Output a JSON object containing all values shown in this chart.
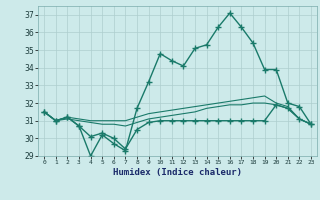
{
  "xlabel": "Humidex (Indice chaleur)",
  "bg_color": "#cdeaea",
  "grid_color": "#aecece",
  "line_color": "#1a7a6a",
  "xlim": [
    -0.5,
    23.5
  ],
  "ylim": [
    29,
    37.5
  ],
  "xticks": [
    0,
    1,
    2,
    3,
    4,
    5,
    6,
    7,
    8,
    9,
    10,
    11,
    12,
    13,
    14,
    15,
    16,
    17,
    18,
    19,
    20,
    21,
    22,
    23
  ],
  "yticks": [
    29,
    30,
    31,
    32,
    33,
    34,
    35,
    36,
    37
  ],
  "series": [
    [
      31.5,
      31.0,
      31.2,
      30.7,
      29.0,
      30.2,
      29.7,
      29.3,
      31.7,
      33.2,
      34.8,
      34.4,
      34.1,
      35.1,
      35.3,
      36.3,
      37.1,
      36.3,
      35.4,
      33.9,
      33.9,
      32.0,
      31.8,
      30.8
    ],
    [
      31.5,
      31.0,
      31.2,
      31.1,
      31.0,
      31.0,
      31.0,
      31.0,
      31.2,
      31.4,
      31.5,
      31.6,
      31.7,
      31.8,
      31.9,
      32.0,
      32.1,
      32.2,
      32.3,
      32.4,
      32.0,
      31.8,
      31.1,
      30.8
    ],
    [
      31.5,
      31.0,
      31.1,
      31.0,
      30.9,
      30.8,
      30.8,
      30.7,
      30.9,
      31.1,
      31.2,
      31.3,
      31.4,
      31.5,
      31.7,
      31.8,
      31.9,
      31.9,
      32.0,
      32.0,
      31.9,
      31.7,
      31.1,
      30.8
    ],
    [
      31.5,
      31.0,
      31.2,
      30.7,
      30.1,
      30.3,
      30.0,
      29.4,
      30.5,
      30.9,
      31.0,
      31.0,
      31.0,
      31.0,
      31.0,
      31.0,
      31.0,
      31.0,
      31.0,
      31.0,
      31.9,
      31.7,
      31.1,
      30.8
    ]
  ],
  "line_styles": [
    {
      "lw": 1.0,
      "marker": "+",
      "ms": 4,
      "mew": 1.0
    },
    {
      "lw": 0.8,
      "marker": null,
      "ms": 0,
      "mew": 0
    },
    {
      "lw": 0.8,
      "marker": null,
      "ms": 0,
      "mew": 0
    },
    {
      "lw": 1.0,
      "marker": "+",
      "ms": 4,
      "mew": 1.0
    }
  ]
}
